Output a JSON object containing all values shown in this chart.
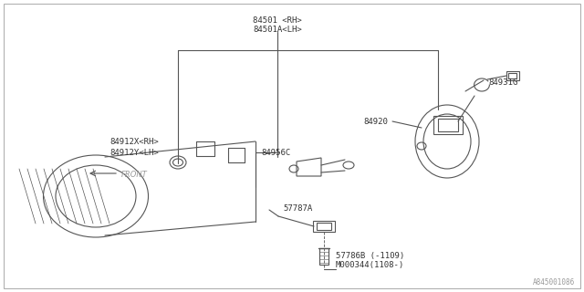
{
  "bg_color": "#ffffff",
  "line_color": "#555555",
  "text_color": "#333333",
  "fig_width": 6.4,
  "fig_height": 3.2,
  "dpi": 100,
  "watermark": "A845001086",
  "label_top1": "84501 <RH>",
  "label_top2": "84501A<LH>",
  "label_84931G": "84931G",
  "label_84920": "84920",
  "label_84956C": "84956C",
  "label_84912X": "84912X<RH>",
  "label_84912Y": "84912Y<LH>",
  "label_front": "FRONT",
  "label_57787A": "57787A",
  "label_57786B": "57786B (-1109)",
  "label_M000344": "M000344(1108-)"
}
